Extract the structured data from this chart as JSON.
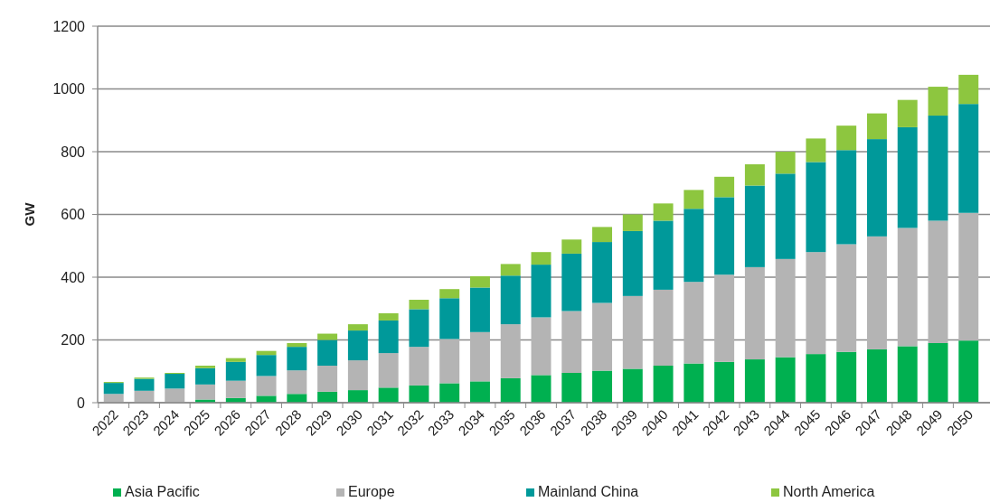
{
  "chart_data": {
    "type": "bar",
    "stacked": true,
    "ylabel": "GW",
    "categories": [
      "2022",
      "2023",
      "2024",
      "2025",
      "2026",
      "2027",
      "2028",
      "2029",
      "2030",
      "2031",
      "2032",
      "2033",
      "2034",
      "2035",
      "2036",
      "2037",
      "2038",
      "2039",
      "2040",
      "2041",
      "2042",
      "2043",
      "2044",
      "2045",
      "2046",
      "2047",
      "2048",
      "2049",
      "2050"
    ],
    "series": [
      {
        "name": "Asia Pacific",
        "color": "#00b050",
        "values": [
          null,
          null,
          null,
          10,
          15,
          22,
          28,
          35,
          40,
          48,
          55,
          62,
          68,
          78,
          88,
          95,
          102,
          108,
          118,
          125,
          130,
          138,
          145,
          155,
          162,
          170,
          180,
          190,
          198
        ]
      },
      {
        "name": "Europe",
        "color": "#b4b4b4",
        "values": [
          28,
          38,
          45,
          48,
          55,
          63,
          75,
          83,
          95,
          110,
          123,
          141,
          157,
          172,
          184,
          197,
          216,
          232,
          242,
          260,
          278,
          294,
          313,
          325,
          343,
          360,
          377,
          390,
          407
        ]
      },
      {
        "name": "Mainland China",
        "color": "#00999a",
        "values": [
          35,
          38,
          47,
          52,
          60,
          67,
          75,
          82,
          95,
          104,
          120,
          130,
          142,
          155,
          168,
          183,
          194,
          207,
          220,
          233,
          247,
          260,
          272,
          287,
          300,
          310,
          321,
          335,
          347
        ]
      },
      {
        "name": "North America",
        "color": "#8dc63f",
        "values": [
          3,
          4,
          3,
          8,
          12,
          13,
          12,
          20,
          20,
          23,
          30,
          29,
          36,
          37,
          40,
          45,
          48,
          53,
          55,
          60,
          65,
          68,
          70,
          75,
          78,
          82,
          87,
          92,
          93
        ]
      }
    ],
    "ylim": [
      0,
      1200
    ],
    "yticks": [
      0,
      200,
      400,
      600,
      800,
      1000,
      1200
    ],
    "grid": "y",
    "legend": "bottom"
  }
}
